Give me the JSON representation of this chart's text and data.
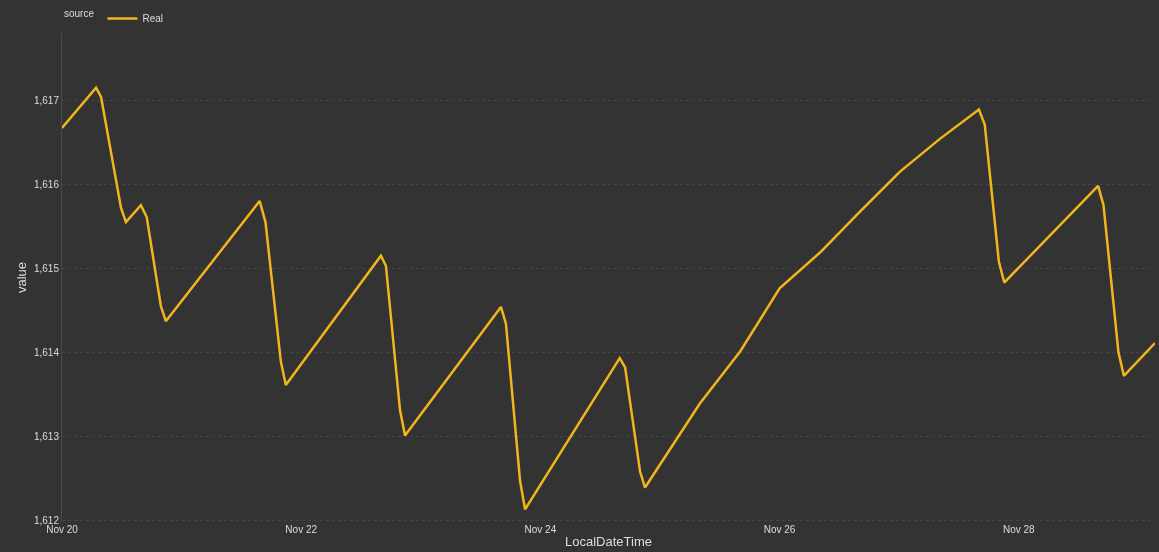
{
  "chart_data": {
    "type": "line",
    "xlabel": "LocalDateTime",
    "ylabel": "value",
    "legend_title": "source",
    "legend": "top left",
    "grid": "y",
    "marker": "none",
    "line_style": "solid",
    "x": [
      "--11-20T00:00",
      "--11-20T06:50",
      "--11-20T07:50",
      "--11-20T11:50",
      "--11-20T12:50",
      "--11-20T15:50",
      "--11-20T17:00",
      "--11-20T19:50",
      "--11-20T20:50",
      "--11-21T15:40",
      "--11-21T16:50",
      "--11-21T19:55",
      "--11-21T20:55",
      "--11-22T16:00",
      "--11-22T17:00",
      "--11-22T19:50",
      "--11-22T20:50",
      "--11-23T16:05",
      "--11-23T17:05",
      "--11-23T19:55",
      "--11-23T20:55",
      "--11-24T15:55",
      "--11-24T17:00",
      "--11-24T20:00",
      "--11-24T21:00",
      "--11-25T08:00",
      "--11-25T16:05",
      "--11-26T00:00",
      "--11-26T08:10",
      "--11-26T16:05",
      "--11-27T00:10",
      "--11-27T08:10",
      "--11-27T16:00",
      "--11-27T17:10",
      "--11-27T20:00",
      "--11-27T21:05",
      "--11-28T15:55",
      "--11-28T17:00",
      "--11-28T20:00",
      "--11-28T21:05",
      "--11-29T03:20"
    ],
    "series": [
      {
        "name": "Real",
        "color": "#f2b51c",
        "values": [
          1616.67,
          1617.15,
          1617.04,
          1615.72,
          1615.55,
          1615.75,
          1615.61,
          1614.55,
          1614.37,
          1615.8,
          1615.55,
          1613.89,
          1613.61,
          1615.15,
          1615.03,
          1613.31,
          1613.01,
          1614.54,
          1614.34,
          1612.47,
          1612.13,
          1613.93,
          1613.82,
          1612.58,
          1612.39,
          1613.39,
          1614.01,
          1614.76,
          1615.19,
          1615.67,
          1616.15,
          1616.54,
          1616.89,
          1616.71,
          1615.08,
          1614.83,
          1615.98,
          1615.75,
          1614.0,
          1613.72,
          1614.11
        ]
      }
    ],
    "xlim": [
      "--11-20T00:00",
      "--11-29T03:20"
    ],
    "xticks": [
      {
        "value": "--11-20",
        "label": "Nov 20"
      },
      {
        "value": "--11-22",
        "label": "Nov 22"
      },
      {
        "value": "--11-24",
        "label": "Nov 24"
      },
      {
        "value": "--11-26",
        "label": "Nov 26"
      },
      {
        "value": "--11-28",
        "label": "Nov 28"
      }
    ],
    "ylim": [
      1611.98,
      1617.8
    ],
    "yticks": [
      {
        "value": 1612,
        "label": "1,612"
      },
      {
        "value": 1613,
        "label": "1,613"
      },
      {
        "value": 1614,
        "label": "1,614"
      },
      {
        "value": 1615,
        "label": "1,615"
      },
      {
        "value": 1616,
        "label": "1,616"
      },
      {
        "value": 1617,
        "label": "1,617"
      }
    ]
  }
}
